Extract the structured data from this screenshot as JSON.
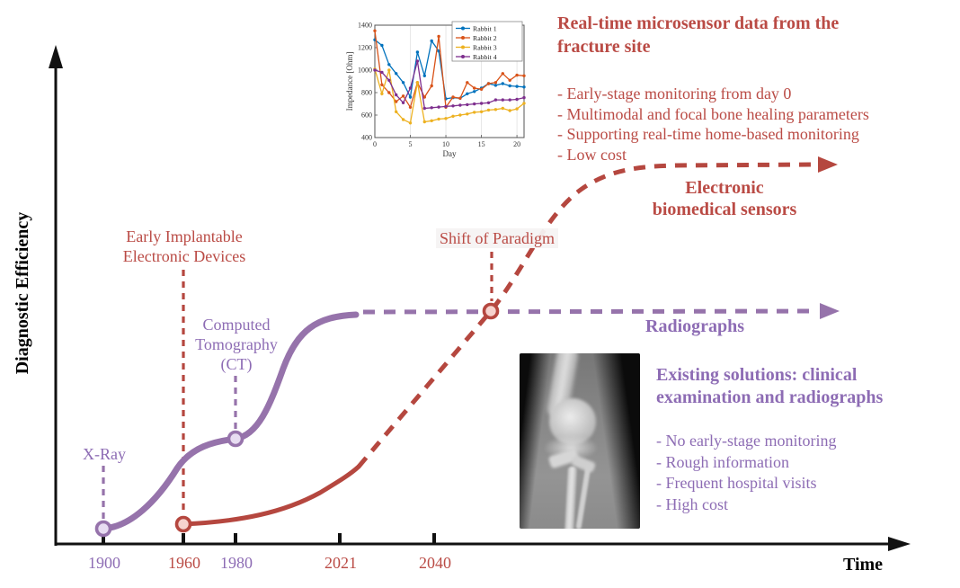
{
  "colors": {
    "red": "#b5473f",
    "red_text": "#ba4b45",
    "purple": "#9673ab",
    "purple_text": "#8d6cb4",
    "axis": "#111111",
    "red_marker_fill": "#f6d2cd",
    "purple_marker_fill": "#e7dcf1"
  },
  "axes": {
    "y_label": "Diagnostic Efficiency",
    "x_label": "Time"
  },
  "timeline": {
    "ticks": [
      {
        "label": "1900",
        "color": "purple"
      },
      {
        "label": "1960",
        "color": "red"
      },
      {
        "label": "1980",
        "color": "purple"
      },
      {
        "label": "2021",
        "color": "red"
      },
      {
        "label": "2040",
        "color": "red"
      }
    ]
  },
  "events": {
    "xray": {
      "label": "X-Ray"
    },
    "implantable": {
      "line1": "Early Implantable",
      "line2": "Electronic Devices"
    },
    "ct": {
      "line1": "Computed",
      "line2": "Tomography",
      "line3": "(CT)"
    },
    "shift": {
      "label": "Shift of Paradigm"
    }
  },
  "curve_labels": {
    "sensors": {
      "line1": "Electronic",
      "line2": "biomedical sensors"
    },
    "radiographs": {
      "label": "Radiographs"
    }
  },
  "sensor_block": {
    "title_line1": "Real-time microsensor data from the",
    "title_line2": "fracture site",
    "bullets": [
      "- Early-stage monitoring from day 0",
      "- Multimodal and focal bone healing parameters",
      "- Supporting real-time home-based monitoring",
      "- Low cost"
    ]
  },
  "existing_block": {
    "title_line1": "Existing solutions: clinical",
    "title_line2": "examination and radiographs",
    "bullets": [
      "- No early-stage monitoring",
      "- Rough information",
      "- Frequent hospital visits",
      "- High cost"
    ]
  },
  "chart_data": [
    {
      "type": "line",
      "title": "Conceptual timeline: diagnostic efficiency of bone-fracture monitoring technologies",
      "xlabel": "Time",
      "ylabel": "Diagnostic Efficiency",
      "x_ticks": [
        "1900",
        "1960",
        "1980",
        "2021",
        "2040"
      ],
      "grid": false,
      "series": [
        {
          "name": "Radiographs",
          "color": "#9673ab",
          "shape": "S-curve: starts 1900 (X-Ray), step rise after 1980 (Computed Tomography), plateaus ~2000, dashed flat projection to future",
          "milestones": [
            {
              "x": "1900",
              "label": "X-Ray"
            },
            {
              "x": "1980",
              "label": "Computed Tomography (CT)"
            }
          ]
        },
        {
          "name": "Electronic biomedical sensors",
          "color": "#b5473f",
          "shape": "starts 1960 low, slow rise, dashed steep projected rise after 2021, crosses Radiographs at 2040 (Shift of Paradigm), plateaus higher",
          "milestones": [
            {
              "x": "1960",
              "label": "Early Implantable Electronic Devices"
            },
            {
              "x": "2040",
              "label": "Shift of Paradigm"
            }
          ]
        }
      ]
    },
    {
      "type": "line",
      "title": "Real-time microsensor data from the fracture site",
      "xlabel": "Day",
      "ylabel": "Impedance [Ohm]",
      "xlim": [
        0,
        21
      ],
      "ylim": [
        400,
        1400
      ],
      "xticks": [
        0,
        5,
        10,
        15,
        20
      ],
      "yticks": [
        400,
        600,
        800,
        1000,
        1200,
        1400
      ],
      "grid": "vertical",
      "legend_position": "top-right",
      "x": [
        0,
        1,
        2,
        3,
        4,
        5,
        6,
        7,
        8,
        9,
        10,
        11,
        12,
        13,
        14,
        15,
        16,
        17,
        18,
        19,
        20,
        21
      ],
      "series": [
        {
          "name": "Rabbit 1",
          "color": "#0072BD",
          "values": [
            1270,
            1220,
            1050,
            970,
            890,
            760,
            1160,
            950,
            1260,
            1170,
            745,
            755,
            750,
            790,
            810,
            840,
            880,
            865,
            880,
            860,
            855,
            850
          ]
        },
        {
          "name": "Rabbit 2",
          "color": "#D95319",
          "values": [
            1350,
            870,
            800,
            720,
            770,
            670,
            890,
            760,
            860,
            1300,
            670,
            760,
            750,
            890,
            840,
            830,
            880,
            890,
            970,
            910,
            955,
            950
          ]
        },
        {
          "name": "Rabbit 3",
          "color": "#EDB120",
          "values": [
            1010,
            790,
            1000,
            630,
            560,
            530,
            890,
            540,
            550,
            565,
            570,
            590,
            600,
            610,
            625,
            630,
            645,
            650,
            660,
            640,
            655,
            705
          ]
        },
        {
          "name": "Rabbit 4",
          "color": "#7E2F8E",
          "values": [
            1000,
            980,
            910,
            780,
            710,
            840,
            1080,
            660,
            666,
            671,
            677,
            682,
            688,
            693,
            699,
            704,
            710,
            735,
            735,
            735,
            740,
            755
          ]
        }
      ]
    }
  ]
}
